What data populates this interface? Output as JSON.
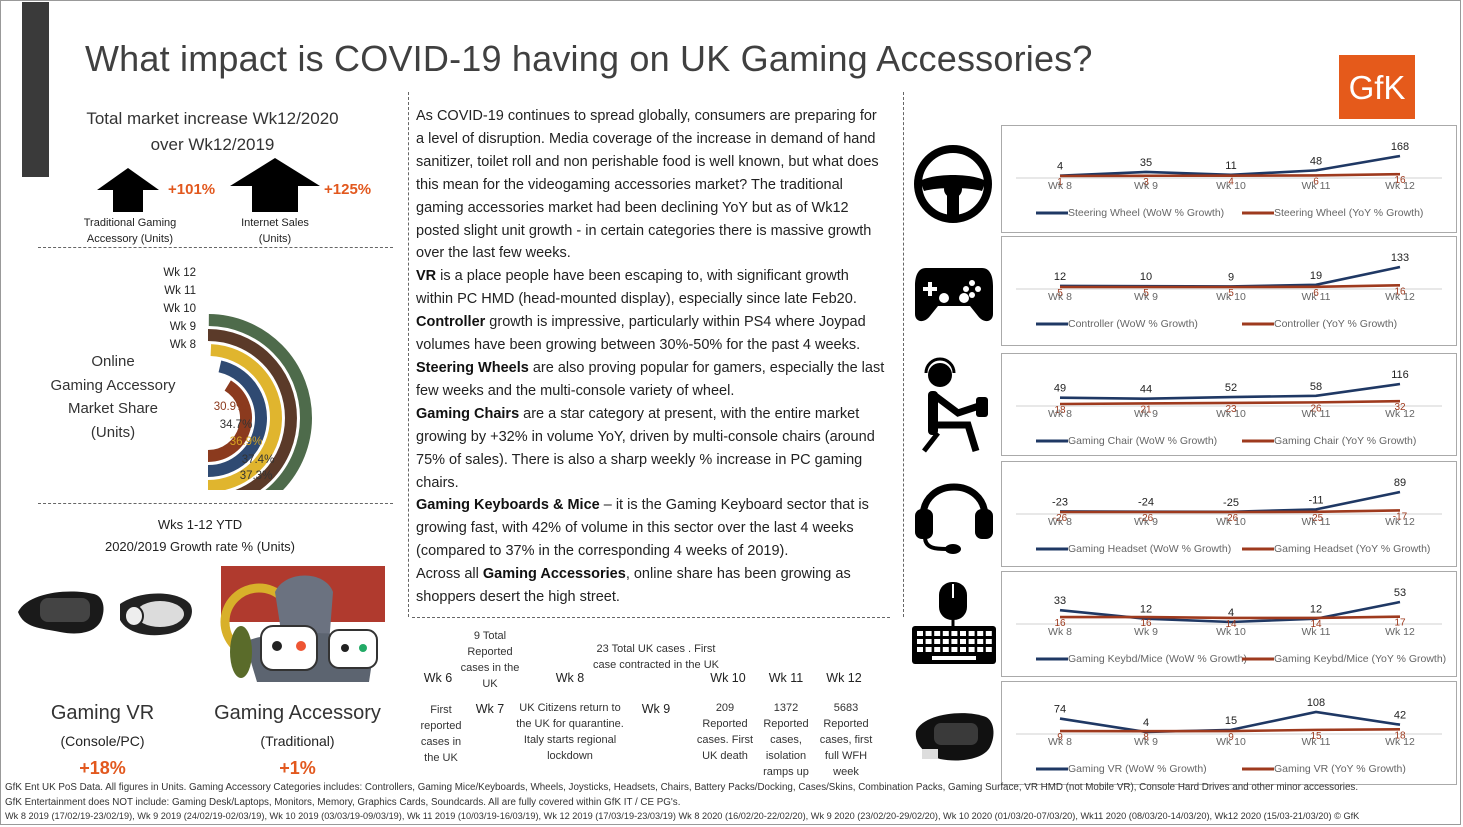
{
  "title": "What impact is COVID-19 having on UK Gaming Accessories?",
  "logo": "GfK",
  "colors": {
    "navy": "#1F3864",
    "rust": "#9E3A1E",
    "orange": "#E2581E",
    "logo": "#E55A1B"
  },
  "market_increase": {
    "heading_line1": "Total market increase Wk12/2020",
    "heading_line2": "over Wk12/2019",
    "traditional": {
      "value": "+101%",
      "label_line1": "Traditional Gaming",
      "label_line2": "Accessory (Units)"
    },
    "internet": {
      "value": "+125%",
      "label_line1": "Internet Sales",
      "label_line2": "(Units)"
    }
  },
  "online_share": {
    "label_lines": [
      "Online",
      "Gaming Accessory",
      "Market Share",
      "(Units)"
    ]
  },
  "ytd": {
    "heading_line1": "Wks 1-12 YTD",
    "heading_line2": "2020/2019 Growth rate % (Units)",
    "vr": {
      "name": "Gaming VR",
      "sub": "(Console/PC)",
      "value": "+18%"
    },
    "accessory": {
      "name": "Gaming Accessory",
      "sub": "(Traditional)",
      "value": "+1%"
    }
  },
  "body_paragraphs": [
    {
      "bold": "",
      "text": "As COVID-19 continues to spread globally, consumers are preparing for a level of disruption. Media coverage of the increase in demand of hand sanitizer, toilet roll and non perishable food is well known, but what does this mean for the videogaming accessories market? The traditional gaming accessories market had been declining YoY but as of Wk12 posted slight unit growth - in certain categories there is massive growth over the last few weeks."
    },
    {
      "bold": "VR",
      "text": " is a place people have been escaping to, with significant growth within PC HMD (head-mounted display), especially since late Feb20."
    },
    {
      "bold": "Controller",
      "text": " growth is impressive, particularly within PS4 where Joypad volumes have been growing between 30%-50% for the past 4 weeks."
    },
    {
      "bold": "Steering Wheels",
      "text": " are also proving popular for gamers, especially the last few weeks and the multi-console variety of wheel."
    },
    {
      "bold": "Gaming Chairs",
      "text": " are a star category at present, with the entire market growing by +32% in volume YoY, driven by multi-console chairs (around 75% of sales).  There is also a sharp weekly % increase in PC gaming chairs."
    },
    {
      "bold": "Gaming Keyboards & Mice",
      "text": " – it is the Gaming Keyboard sector that is growing fast, with 42% of volume in this sector over the last 4 weeks (compared to 37% in the corresponding 4 weeks of 2019)."
    },
    {
      "bold": "",
      "pre": "Across all ",
      "bold2": "Gaming Accessories",
      "text": ", online share has been growing as shoppers desert the high street."
    }
  ],
  "timeline": {
    "weeks": [
      "Wk 6",
      "Wk 7",
      "Wk 8",
      "Wk 9",
      "Wk 10",
      "Wk 11",
      "Wk 12"
    ],
    "above": {
      "wk7": "9 Total Reported cases in the UK",
      "wk8": "23 Total UK cases . First case contracted in the UK"
    },
    "below": {
      "wk6": "First reported cases in the UK",
      "wk8": "UK Citizens return to the  UK for quarantine. Italy starts regional lockdown",
      "wk10": "209 Reported cases. First UK death",
      "wk11": "1372 Reported cases, isolation ramps up",
      "wk12": "5683 Reported cases, first full WFH week"
    }
  },
  "footer": [
    "GfK Ent UK PoS Data. All figures in Units. Gaming Accessory Categories includes: Controllers, Gaming Mice/Keyboards, Wheels, Joysticks, Headsets, Chairs, Battery Packs/Docking, Cases/Skins, Combination Packs, Gaming Surface, VR HMD (not Mobile VR), Console Hard Drives and other minor accessories.",
    "GfK Entertainment does NOT include: Gaming Desk/Laptops, Monitors, Memory, Graphics Cards, Soundcards.  All are fully covered within GfK IT / CE PG's.",
    "Wk 8 2019 (17/02/19-23/02/19), Wk 9 2019 (24/02/19-02/03/19), Wk 10 2019 (03/03/19-09/03/19), Wk 11 2019 (10/03/19-16/03/19), Wk 12 2019 (17/03/19-23/03/19) Wk 8 2020 (16/02/20-22/02/20), Wk 9 2020 (23/02/20-29/02/20), Wk 10 2020 (01/03/20-07/03/20), Wk11 2020 (08/03/20-14/03/20), Wk12 2020 (15/03-21/03/20) © GfK"
  ],
  "chart_data": [
    {
      "type": "pie",
      "title": "",
      "categories": [
        "Wk 12",
        "Wk 11",
        "Wk 10",
        "Wk 9",
        "Wk 8"
      ],
      "values": [
        37.3,
        37.4,
        36.9,
        34.7,
        30.9
      ],
      "labels": [
        "37.3%",
        "37.4%",
        "36.9%",
        "34.7%",
        "30.9%"
      ],
      "colors": [
        "#4E6B4B",
        "#5B3A29",
        "#E0B52E",
        "#2F4A72",
        "#8B3A1E"
      ]
    },
    {
      "type": "line",
      "icon": "steering-wheel-icon",
      "x": [
        "Wk 8",
        "Wk 9",
        "Wk 10",
        "Wk 11",
        "Wk 12"
      ],
      "series": [
        {
          "name": "Steering Wheel (WoW % Growth)",
          "values": [
            4,
            35,
            11,
            48,
            168
          ]
        },
        {
          "name": "Steering Wheel (YoY % Growth)",
          "values": [
            1,
            3,
            4,
            6,
            16
          ]
        }
      ]
    },
    {
      "type": "line",
      "icon": "controller-icon",
      "x": [
        "Wk 8",
        "Wk 9",
        "Wk 10",
        "Wk 11",
        "Wk 12"
      ],
      "series": [
        {
          "name": "Controller (WoW % Growth)",
          "values": [
            12,
            10,
            9,
            19,
            133
          ]
        },
        {
          "name": "Controller (YoY % Growth)",
          "values": [
            5,
            5,
            5,
            6,
            16
          ]
        }
      ]
    },
    {
      "type": "line",
      "icon": "gaming-chair-icon",
      "x": [
        "Wk 8",
        "Wk 9",
        "Wk 10",
        "Wk 11",
        "Wk 12"
      ],
      "series": [
        {
          "name": "Gaming Chair (WoW % Growth)",
          "values": [
            49,
            44,
            52,
            58,
            116
          ]
        },
        {
          "name": "Gaming Chair (YoY % Growth)",
          "values": [
            18,
            21,
            23,
            26,
            32
          ]
        }
      ]
    },
    {
      "type": "line",
      "icon": "headset-icon",
      "x": [
        "Wk 8",
        "Wk 9",
        "Wk 10",
        "Wk 11",
        "Wk 12"
      ],
      "series": [
        {
          "name": "Gaming Headset (WoW % Growth)",
          "values": [
            -23,
            -24,
            -25,
            -11,
            89
          ]
        },
        {
          "name": "Gaming Headset (YoY % Growth)",
          "values": [
            -26,
            -26,
            -26,
            -25,
            -17
          ]
        }
      ]
    },
    {
      "type": "line",
      "icon": "keyboard-mouse-icon",
      "x": [
        "Wk 8",
        "Wk 9",
        "Wk 10",
        "Wk 11",
        "Wk 12"
      ],
      "series": [
        {
          "name": "Gaming Keybd/Mice (WoW % Growth)",
          "values": [
            33,
            12,
            4,
            12,
            53
          ]
        },
        {
          "name": "Gaming Keybd/Mice (YoY % Growth)",
          "values": [
            16,
            16,
            14,
            14,
            17
          ]
        }
      ]
    },
    {
      "type": "line",
      "icon": "vr-headset-icon",
      "x": [
        "Wk 8",
        "Wk 9",
        "Wk 10",
        "Wk 11",
        "Wk 12"
      ],
      "series": [
        {
          "name": "Gaming VR (WoW % Growth)",
          "values": [
            74,
            4,
            15,
            108,
            42
          ]
        },
        {
          "name": "Gaming VR (YoY % Growth)",
          "values": [
            9,
            8,
            9,
            15,
            18
          ]
        }
      ]
    }
  ]
}
